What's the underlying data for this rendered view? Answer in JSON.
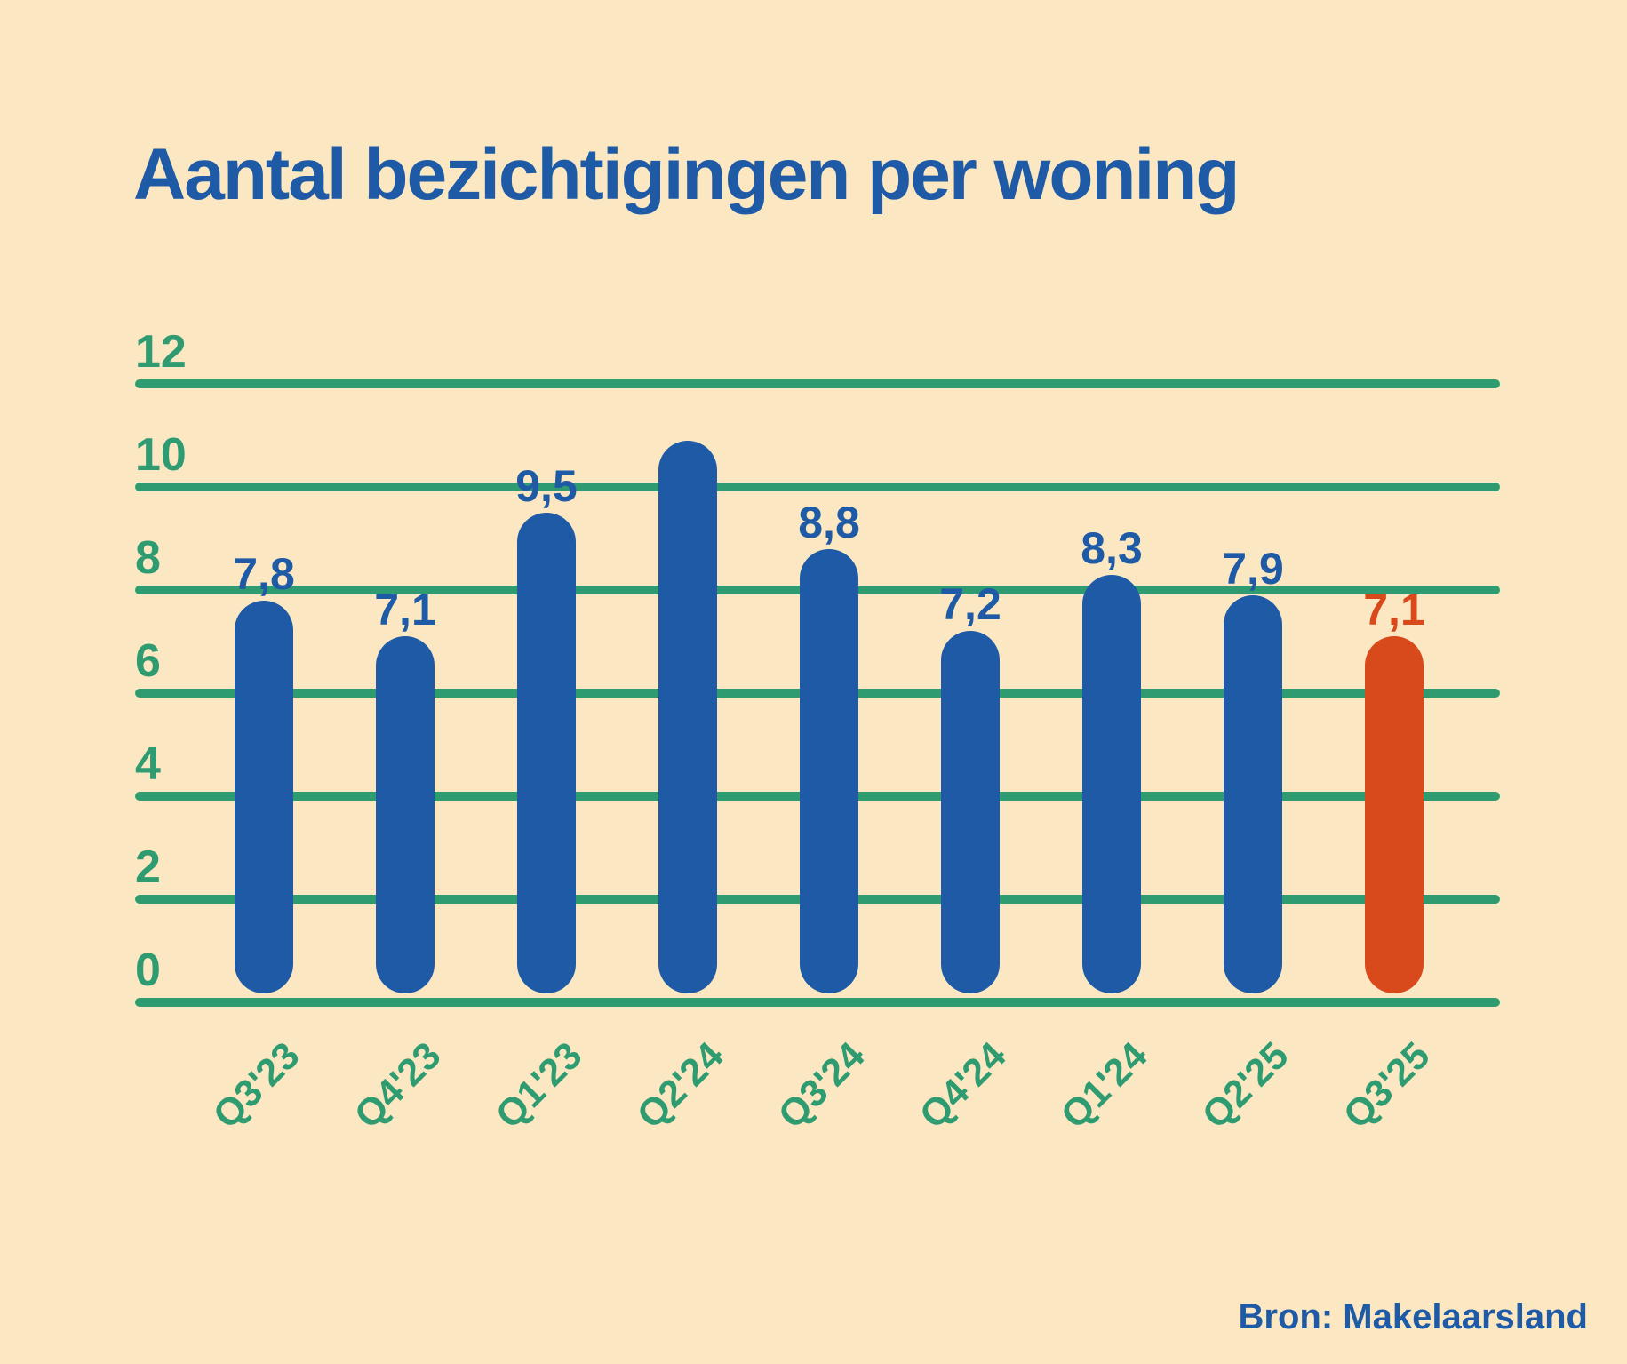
{
  "background_color": "#FBE8C3",
  "title": {
    "text": "Aantal bezichtigingen per woning",
    "color": "#1E5AA5"
  },
  "source": {
    "text": "Bron: Makelaarsland",
    "color": "#1E5AA5"
  },
  "chart_data": {
    "type": "bar",
    "title": "Aantal bezichtigingen per woning",
    "categories": [
      "Q3'23",
      "Q4'23",
      "Q1'23",
      "Q2'24",
      "Q3'24",
      "Q4'24",
      "Q1'24",
      "Q2'25",
      "Q3'25"
    ],
    "values": [
      7.8,
      7.1,
      9.5,
      10.9,
      8.8,
      7.2,
      8.3,
      7.9,
      7.1
    ],
    "value_labels": [
      "7,8",
      "7,1",
      "9,5",
      null,
      "8,8",
      "7,2",
      "8,3",
      "7,9",
      "7,1"
    ],
    "highlight_index": 8,
    "xlabel": "",
    "ylabel": "",
    "y_axis": {
      "ticks": [
        12,
        10,
        8,
        6,
        4,
        2,
        0
      ],
      "range": [
        0,
        12
      ],
      "gridlines": true
    },
    "legend": null,
    "colors": {
      "bar": "#1E5AA5",
      "bar_highlight": "#D84A1C",
      "grid": "#2F9B70",
      "axis_text": "#2F9B70",
      "value_label": "#1E5AA5",
      "value_label_highlight": "#D84A1C"
    }
  }
}
